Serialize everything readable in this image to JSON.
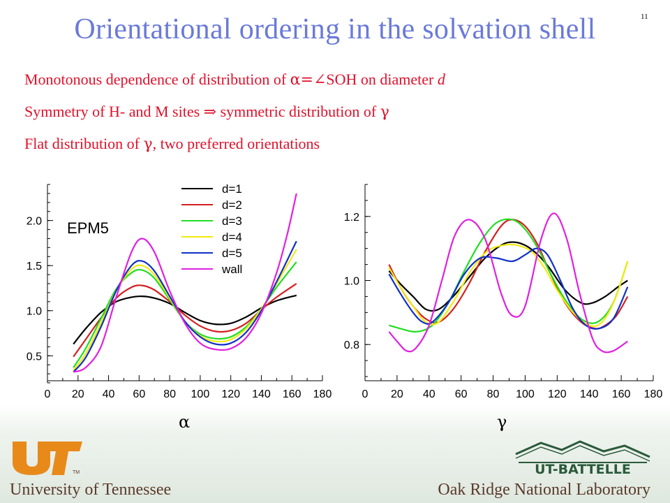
{
  "slide": {
    "number": "11",
    "title": "Orientational ordering in the solvation shell"
  },
  "bullets": {
    "b1": {
      "t1": "Monotonous dependence of distribution of ",
      "sym1": "α=∠",
      "t2": "SOH on diameter ",
      "var": "d"
    },
    "b2": {
      "t1": "Symmetry of H- and M sites ",
      "arrow": "⇒",
      "t2": " symmetric distribution of ",
      "sym": "γ"
    },
    "b3": {
      "t1": "Flat distribution of ",
      "sym": "γ",
      "t2": ", two preferred orientations"
    }
  },
  "chart_data": [
    {
      "type": "line",
      "annotation": "EPM5",
      "xlabel": "α",
      "ylabel": "",
      "xlim": [
        0,
        180
      ],
      "ylim": [
        0.2,
        2.4
      ],
      "xticks": [
        0,
        20,
        40,
        60,
        80,
        100,
        120,
        140,
        160,
        180
      ],
      "yticks": [
        0.5,
        1.0,
        1.5,
        2.0
      ],
      "ytick_labels": [
        "0.5",
        "1.0",
        "1.5",
        "2.0"
      ],
      "grid": false,
      "legend": "top-right",
      "series": [
        {
          "name": "d=1",
          "color": "#000000",
          "x": [
            17,
            25,
            35,
            45,
            55,
            62,
            70,
            80,
            90,
            100,
            110,
            120,
            130,
            140,
            150,
            163
          ],
          "y": [
            0.63,
            0.8,
            0.98,
            1.1,
            1.15,
            1.16,
            1.14,
            1.08,
            0.98,
            0.89,
            0.85,
            0.86,
            0.93,
            1.03,
            1.11,
            1.17
          ]
        },
        {
          "name": "d=2",
          "color": "#d42020",
          "x": [
            17,
            25,
            35,
            45,
            55,
            62,
            70,
            80,
            90,
            100,
            110,
            120,
            130,
            140,
            150,
            163
          ],
          "y": [
            0.49,
            0.68,
            0.92,
            1.14,
            1.26,
            1.28,
            1.23,
            1.1,
            0.95,
            0.83,
            0.77,
            0.78,
            0.86,
            1.01,
            1.15,
            1.3
          ]
        },
        {
          "name": "d=3",
          "color": "#22dd22",
          "x": [
            17,
            25,
            35,
            45,
            55,
            62,
            70,
            80,
            90,
            100,
            110,
            120,
            130,
            140,
            150,
            163
          ],
          "y": [
            0.37,
            0.58,
            0.91,
            1.24,
            1.42,
            1.45,
            1.36,
            1.12,
            0.88,
            0.74,
            0.69,
            0.71,
            0.82,
            1.02,
            1.26,
            1.54
          ]
        },
        {
          "name": "d=4",
          "color": "#f2ea10",
          "x": [
            17,
            25,
            35,
            45,
            55,
            62,
            70,
            80,
            90,
            100,
            110,
            120,
            130,
            140,
            150,
            163
          ],
          "y": [
            0.34,
            0.52,
            0.86,
            1.22,
            1.46,
            1.5,
            1.4,
            1.14,
            0.88,
            0.72,
            0.66,
            0.68,
            0.8,
            1.02,
            1.3,
            1.68
          ]
        },
        {
          "name": "d=5",
          "color": "#1030c8",
          "x": [
            17,
            25,
            35,
            45,
            55,
            62,
            70,
            80,
            90,
            100,
            110,
            120,
            130,
            140,
            150,
            163
          ],
          "y": [
            0.32,
            0.48,
            0.82,
            1.22,
            1.5,
            1.55,
            1.44,
            1.16,
            0.88,
            0.71,
            0.63,
            0.64,
            0.76,
            1.0,
            1.32,
            1.77
          ]
        },
        {
          "name": "wall",
          "color": "#e020e0",
          "x": [
            17,
            25,
            35,
            45,
            55,
            62,
            70,
            80,
            90,
            100,
            110,
            120,
            130,
            140,
            150,
            157,
            163
          ],
          "y": [
            0.32,
            0.37,
            0.6,
            1.15,
            1.65,
            1.8,
            1.65,
            1.22,
            0.86,
            0.64,
            0.57,
            0.58,
            0.7,
            0.97,
            1.42,
            1.85,
            2.3
          ]
        }
      ]
    },
    {
      "type": "line",
      "xlabel": "γ",
      "ylabel": "",
      "xlim": [
        0,
        180
      ],
      "ylim": [
        0.7,
        1.3
      ],
      "xticks": [
        0,
        20,
        40,
        60,
        80,
        100,
        120,
        140,
        160,
        180
      ],
      "yticks": [
        0.8,
        1.0,
        1.2
      ],
      "ytick_labels": [
        "0.8",
        "1.0",
        "1.2"
      ],
      "grid": false,
      "legend": "none",
      "series": [
        {
          "name": "",
          "color": "#000000",
          "x": [
            15,
            22,
            30,
            38,
            46,
            55,
            65,
            75,
            85,
            92,
            100,
            108,
            115,
            125,
            135,
            142,
            150,
            158,
            164
          ],
          "y": [
            1.03,
            0.99,
            0.95,
            0.91,
            0.91,
            0.95,
            1.01,
            1.07,
            1.11,
            1.12,
            1.11,
            1.08,
            1.04,
            0.97,
            0.93,
            0.93,
            0.95,
            0.98,
            1.0
          ]
        },
        {
          "name": "",
          "color": "#d42020",
          "x": [
            15,
            22,
            30,
            38,
            46,
            55,
            65,
            75,
            85,
            92,
            100,
            108,
            115,
            125,
            135,
            144,
            150,
            157,
            164
          ],
          "y": [
            1.05,
            0.98,
            0.92,
            0.88,
            0.87,
            0.91,
            0.99,
            1.09,
            1.17,
            1.19,
            1.17,
            1.11,
            1.03,
            0.93,
            0.87,
            0.85,
            0.86,
            0.89,
            0.95
          ]
        },
        {
          "name": "",
          "color": "#22dd22",
          "x": [
            15,
            22,
            32,
            42,
            52,
            62,
            72,
            82,
            92,
            100,
            108,
            116,
            125,
            135,
            145,
            155,
            164
          ],
          "y": [
            0.86,
            0.85,
            0.84,
            0.86,
            0.93,
            1.03,
            1.12,
            1.18,
            1.19,
            1.16,
            1.1,
            1.02,
            0.94,
            0.88,
            0.87,
            0.93,
            1.06
          ]
        },
        {
          "name": "",
          "color": "#f2ea10",
          "x": [
            15,
            22,
            30,
            38,
            46,
            56,
            66,
            76,
            86,
            95,
            104,
            112,
            120,
            130,
            140,
            148,
            156,
            164
          ],
          "y": [
            1.04,
            0.98,
            0.92,
            0.87,
            0.87,
            0.94,
            1.03,
            1.09,
            1.11,
            1.11,
            1.09,
            1.04,
            0.97,
            0.9,
            0.86,
            0.87,
            0.94,
            1.06
          ]
        },
        {
          "name": "",
          "color": "#1030c8",
          "x": [
            15,
            22,
            30,
            36,
            42,
            52,
            62,
            72,
            82,
            92,
            100,
            107,
            114,
            122,
            130,
            138,
            146,
            155,
            164
          ],
          "y": [
            1.02,
            0.96,
            0.9,
            0.87,
            0.87,
            0.93,
            1.02,
            1.07,
            1.07,
            1.06,
            1.08,
            1.1,
            1.08,
            1.0,
            0.91,
            0.86,
            0.85,
            0.88,
            0.98
          ]
        },
        {
          "name": "",
          "color": "#e020e0",
          "x": [
            15,
            20,
            26,
            32,
            40,
            48,
            56,
            65,
            75,
            85,
            92,
            100,
            110,
            118,
            126,
            134,
            142,
            148,
            155,
            164
          ],
          "y": [
            0.84,
            0.81,
            0.78,
            0.79,
            0.86,
            1.0,
            1.14,
            1.19,
            1.13,
            0.96,
            0.89,
            0.92,
            1.13,
            1.21,
            1.13,
            0.96,
            0.82,
            0.78,
            0.78,
            0.81
          ]
        }
      ]
    }
  ],
  "footer": {
    "left_text": "University of Tennessee",
    "right_logo_text": "UT-BATTELLE",
    "right_text": "Oak Ridge National Laboratory",
    "tm": "TM",
    "colors": {
      "ut_orange": "#e88a1a",
      "ut_text": "#5a3a2a",
      "battelle_green": "#2a5a3a"
    }
  }
}
